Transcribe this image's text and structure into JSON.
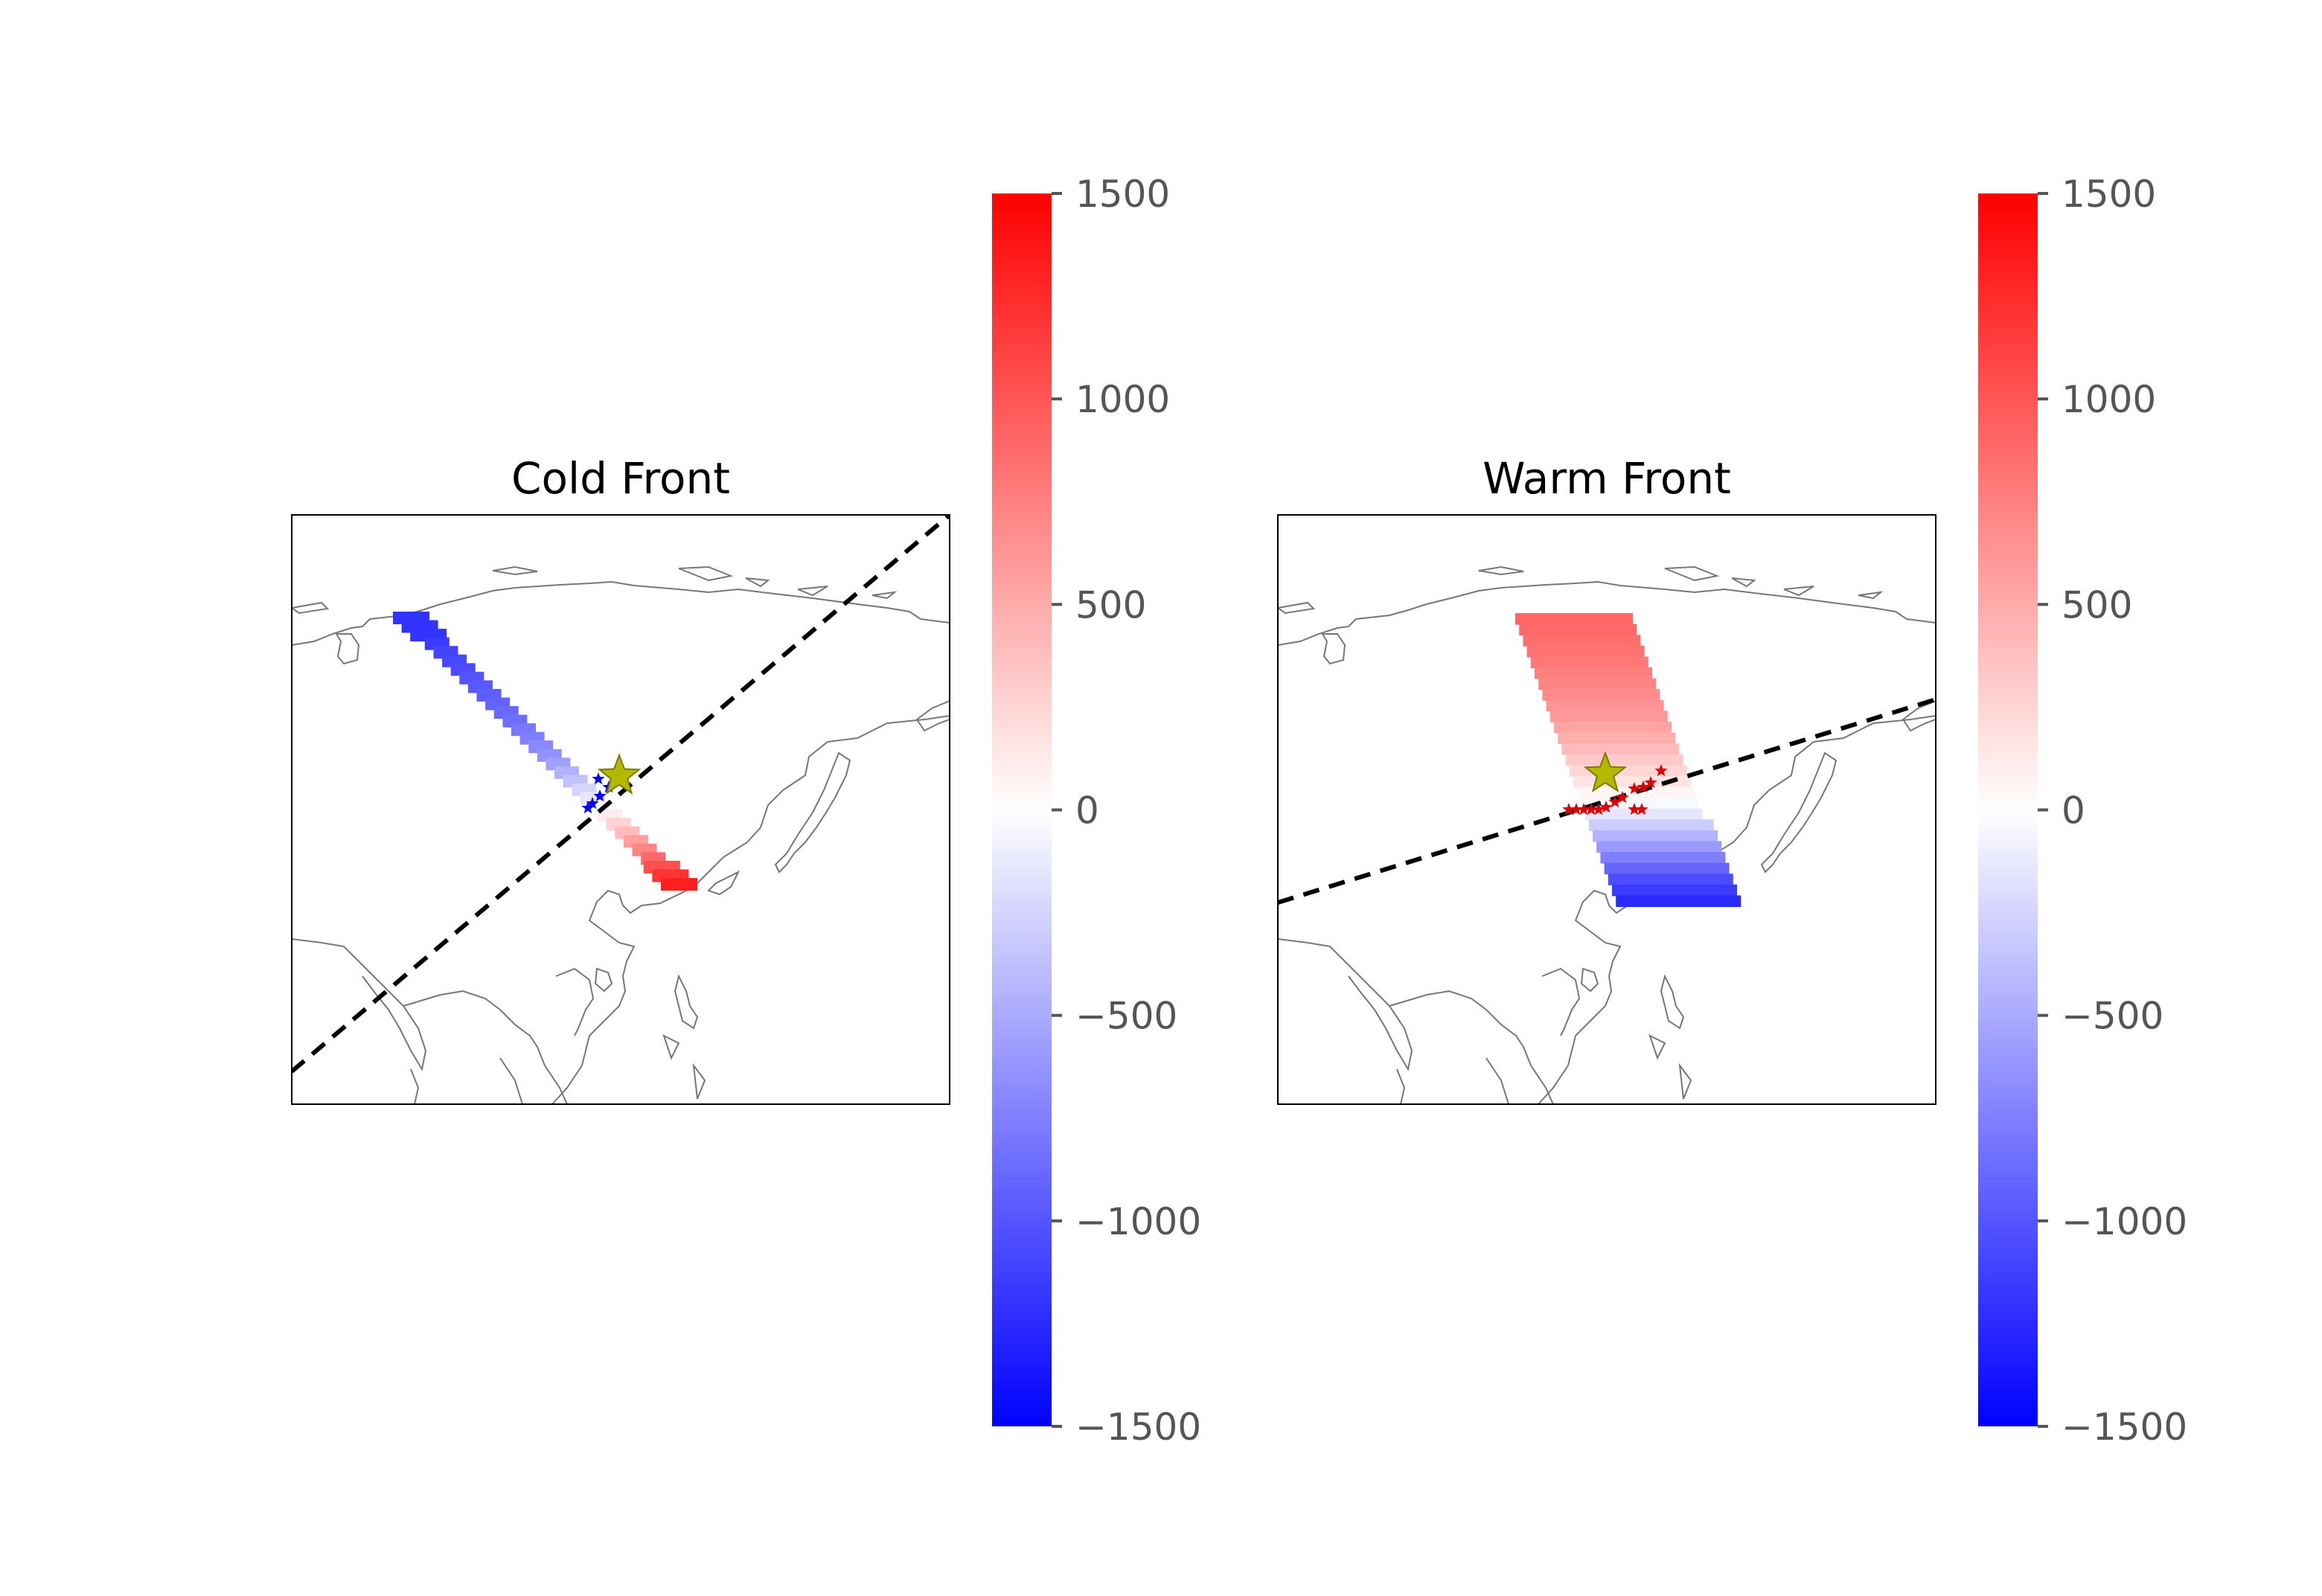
{
  "chart_data": [
    {
      "type": "heatmap",
      "title": "Cold Front",
      "colorbar": {
        "ticks": [
          1500,
          1000,
          500,
          0,
          -500,
          -1000,
          -1500
        ],
        "tick_labels": [
          "1500",
          "1000",
          "500",
          "0",
          "−500",
          "−1000",
          "−1500"
        ],
        "range": [
          -1500,
          1500
        ],
        "cmap": "bwr"
      },
      "front_line": {
        "style": "dashed",
        "color": "#000000"
      },
      "cells": [
        [
          -1200,
          -1200,
          -1200,
          -1150,
          -1100,
          -1080,
          -1050,
          -1000,
          -980,
          -950,
          -920,
          -880,
          -850,
          -800,
          -760,
          -700,
          -640,
          -560,
          -460,
          -360,
          -250,
          -150,
          0,
          120,
          260,
          400,
          560,
          720,
          880,
          1040,
          1200,
          1320
        ]
      ],
      "stations": {
        "color": "#0000ff",
        "count": 5
      },
      "center_marker": {
        "color": "#b5b800"
      }
    },
    {
      "type": "heatmap",
      "title": "Warm Front",
      "colorbar": {
        "ticks": [
          1500,
          1000,
          500,
          0,
          -500,
          -1000,
          -1500
        ],
        "tick_labels": [
          "1500",
          "1000",
          "500",
          "0",
          "−500",
          "−1000",
          "−1500"
        ],
        "range": [
          -1500,
          1500
        ],
        "cmap": "bwr"
      },
      "front_line": {
        "style": "dashed",
        "color": "#000000"
      },
      "row_values": [
        900,
        880,
        860,
        830,
        800,
        760,
        720,
        680,
        640,
        600,
        540,
        480,
        400,
        320,
        240,
        160,
        60,
        -40,
        -150,
        -300,
        -450,
        -600,
        -750,
        -900,
        -1050,
        -1150,
        -1250
      ],
      "stations": {
        "color": "#e00000",
        "count": 14
      },
      "center_marker": {
        "color": "#b5b800"
      }
    }
  ]
}
